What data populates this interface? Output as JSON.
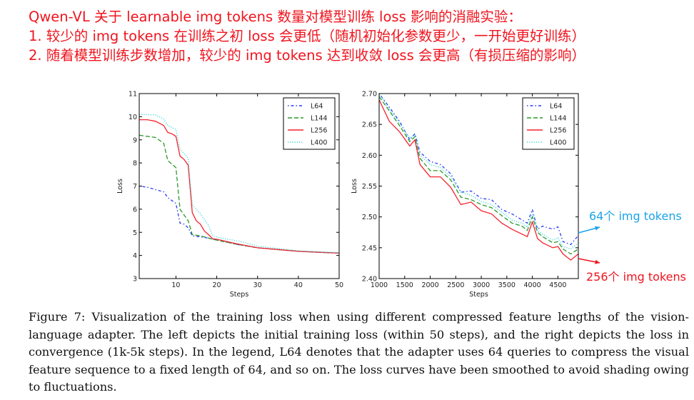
{
  "notes": {
    "line1": "Qwen-VL 关于 learnable img tokens 数量对模型训练 loss 影响的消融实验：",
    "line2": "1. 较少的 img tokens 在训练之初 loss 会更低（随机初始化参数更少，一开始更好训练）",
    "line3": "2. 随着模型训练步数增加，较少的 img tokens 达到收敛 loss 会更高（有损压缩的影响）"
  },
  "annotations": {
    "a64": "64个 img tokens",
    "a256": "256个 img tokens",
    "color64": "#1aa3e8",
    "color256": "#f0141e"
  },
  "caption": "Figure 7: Visualization of the training loss when using different compressed feature lengths of the vision-language adapter. The left depicts the initial training loss (within 50 steps), and the right depicts the loss in convergence (1k-5k steps). In the legend, L64 denotes that the adapter uses 64 queries to compress the visual feature sequence to a fixed length of 64, and so on. The loss curves have been smoothed to avoid shading owing to fluctuations.",
  "chart_data": [
    {
      "type": "line",
      "xlabel": "Steps",
      "ylabel": "Loss",
      "xlim": [
        1,
        50
      ],
      "ylim": [
        3,
        11
      ],
      "xticks": [
        10,
        20,
        30,
        40,
        50
      ],
      "yticks": [
        3,
        4,
        5,
        6,
        7,
        8,
        9,
        10,
        11
      ],
      "ytick_labels": [
        "3",
        "4",
        "5",
        "6",
        "7",
        "8",
        "9",
        "10",
        "11"
      ],
      "legend": "top-right",
      "series": [
        {
          "name": "L64",
          "color": "#2b3bf5",
          "style": "dashdot",
          "x": [
            1,
            3,
            5,
            7,
            8,
            10,
            11,
            12,
            13,
            14,
            16,
            18,
            20,
            25,
            30,
            35,
            40,
            45,
            50
          ],
          "y": [
            7.0,
            6.95,
            6.85,
            6.75,
            6.5,
            6.25,
            5.4,
            5.35,
            5.2,
            4.85,
            4.8,
            4.75,
            4.67,
            4.48,
            4.33,
            4.25,
            4.18,
            4.13,
            4.1
          ]
        },
        {
          "name": "L144",
          "color": "#2a9a2a",
          "style": "dashed",
          "x": [
            1,
            5,
            7,
            8,
            10,
            11,
            13,
            14,
            16,
            19,
            25,
            30,
            40,
            50
          ],
          "y": [
            9.2,
            9.1,
            8.85,
            8.1,
            7.8,
            6.0,
            5.5,
            4.9,
            4.85,
            4.7,
            4.48,
            4.33,
            4.18,
            4.1
          ]
        },
        {
          "name": "L256",
          "color": "#f5222d",
          "style": "solid",
          "x": [
            1,
            3,
            5,
            7,
            8,
            9,
            10,
            11,
            12,
            13,
            14,
            15,
            16,
            17,
            18,
            19,
            20,
            25,
            30,
            40,
            50
          ],
          "y": [
            9.87,
            9.87,
            9.8,
            9.62,
            9.32,
            9.26,
            9.15,
            8.3,
            8.15,
            7.9,
            5.85,
            5.5,
            5.35,
            5.05,
            4.9,
            4.72,
            4.7,
            4.5,
            4.33,
            4.18,
            4.1
          ]
        },
        {
          "name": "L400",
          "color": "#3fd6d6",
          "style": "dotted",
          "x": [
            1,
            5,
            7,
            8,
            10,
            11,
            13,
            14,
            16,
            18,
            19,
            21,
            26,
            30,
            40,
            50
          ],
          "y": [
            10.1,
            10.08,
            9.9,
            9.62,
            9.45,
            8.6,
            8.2,
            6.2,
            5.8,
            5.3,
            4.85,
            4.75,
            4.6,
            4.4,
            4.2,
            4.12
          ]
        }
      ]
    },
    {
      "type": "line",
      "xlabel": "Steps",
      "ylabel": "Loss",
      "xlim": [
        1000,
        4900
      ],
      "ylim": [
        2.4,
        2.7
      ],
      "xticks": [
        1000,
        1500,
        2000,
        2500,
        3000,
        3500,
        4000,
        4500
      ],
      "yticks": [
        2.4,
        2.45,
        2.5,
        2.55,
        2.6,
        2.65,
        2.7
      ],
      "ytick_labels": [
        "2.40",
        "2.45",
        "2.50",
        "2.55",
        "2.60",
        "2.65",
        "2.70"
      ],
      "legend": "top-right",
      "series": [
        {
          "name": "L64",
          "color": "#2b3bf5",
          "style": "dashdot",
          "x": [
            1000,
            1200,
            1400,
            1600,
            1700,
            1800,
            2000,
            2200,
            2400,
            2600,
            2800,
            3000,
            3200,
            3400,
            3600,
            3800,
            3900,
            4000,
            4100,
            4200,
            4400,
            4500,
            4600,
            4750,
            4900
          ],
          "y": [
            2.7,
            2.678,
            2.655,
            2.625,
            2.635,
            2.605,
            2.59,
            2.585,
            2.57,
            2.54,
            2.542,
            2.53,
            2.528,
            2.512,
            2.505,
            2.495,
            2.49,
            2.512,
            2.48,
            2.485,
            2.48,
            2.484,
            2.46,
            2.455,
            2.47
          ]
        },
        {
          "name": "L144",
          "color": "#2a9a2a",
          "style": "dashed",
          "x": [
            1000,
            1200,
            1400,
            1600,
            1700,
            1800,
            2000,
            2200,
            2400,
            2600,
            2800,
            3000,
            3200,
            3400,
            3600,
            3800,
            3900,
            4000,
            4100,
            4200,
            4400,
            4500,
            4600,
            4750,
            4900
          ],
          "y": [
            2.695,
            2.672,
            2.648,
            2.622,
            2.63,
            2.595,
            2.575,
            2.575,
            2.56,
            2.532,
            2.528,
            2.52,
            2.515,
            2.502,
            2.49,
            2.485,
            2.478,
            2.5,
            2.475,
            2.468,
            2.458,
            2.46,
            2.448,
            2.44,
            2.448
          ]
        },
        {
          "name": "L256",
          "color": "#f5222d",
          "style": "solid",
          "x": [
            1000,
            1200,
            1400,
            1600,
            1700,
            1800,
            2000,
            2200,
            2400,
            2600,
            2800,
            3000,
            3200,
            3400,
            3600,
            3800,
            3900,
            4000,
            4100,
            4200,
            4400,
            4500,
            4600,
            4750,
            4900
          ],
          "y": [
            2.69,
            2.655,
            2.638,
            2.615,
            2.625,
            2.585,
            2.565,
            2.565,
            2.548,
            2.52,
            2.524,
            2.51,
            2.505,
            2.49,
            2.48,
            2.472,
            2.468,
            2.492,
            2.465,
            2.458,
            2.45,
            2.452,
            2.44,
            2.43,
            2.44
          ]
        },
        {
          "name": "L400",
          "color": "#3fd6d6",
          "style": "dotted",
          "x": [
            1000,
            1200,
            1400,
            1600,
            1700,
            1800,
            2000,
            2200,
            2400,
            2600,
            2800,
            3000,
            3200,
            3400,
            3600,
            3800,
            3900,
            4000,
            4100,
            4200,
            4400,
            4500,
            4600,
            4750,
            4900
          ],
          "y": [
            2.7,
            2.675,
            2.652,
            2.628,
            2.633,
            2.6,
            2.585,
            2.58,
            2.565,
            2.54,
            2.535,
            2.525,
            2.52,
            2.508,
            2.495,
            2.49,
            2.483,
            2.505,
            2.478,
            2.472,
            2.462,
            2.466,
            2.452,
            2.448,
            2.458
          ]
        }
      ]
    }
  ]
}
